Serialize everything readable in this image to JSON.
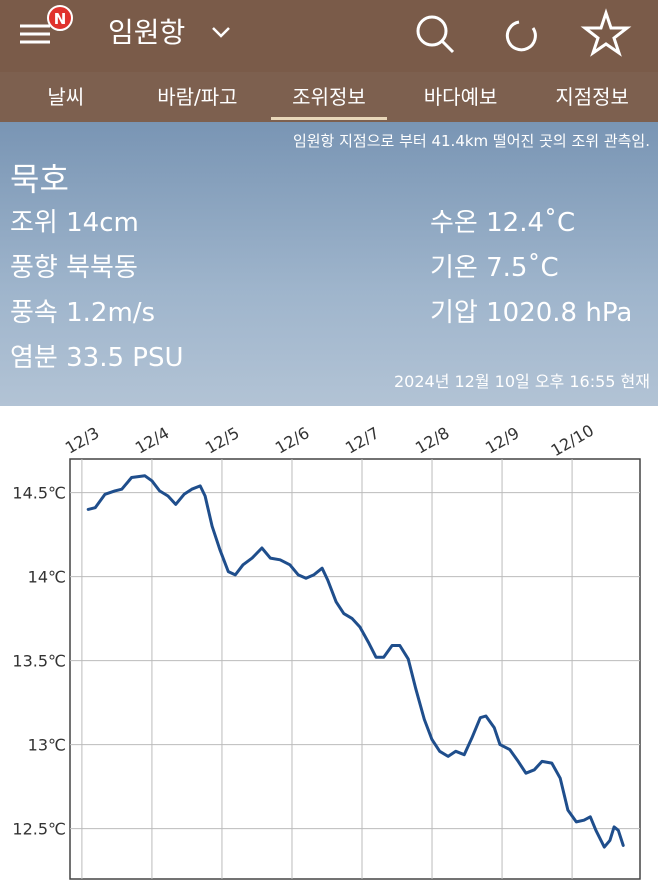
{
  "header": {
    "badge": "N",
    "title": "임원항"
  },
  "tabs": [
    "날씨",
    "바람/파고",
    "조위정보",
    "바다예보",
    "지점정보"
  ],
  "info": {
    "note": "임원항 지점으로 부터 41.4km 떨어진 곳의 조위 관측임.",
    "station": "묵호",
    "left": [
      "조위 14cm",
      "풍향 북북동",
      "풍속 1.2m/s",
      "염분 33.5 PSU"
    ],
    "right": [
      "수온 12.4˚C",
      "기온 7.5˚C",
      "기압 1020.8 hPa"
    ],
    "timestamp": "2024년 12월 10일 오후 16:55 현재"
  },
  "chart_data": {
    "type": "line",
    "color": "#1f4e8c",
    "grid": true,
    "x": [
      0.09,
      0.19,
      0.33,
      0.47,
      0.57,
      0.71,
      0.9,
      1.0,
      1.11,
      1.23,
      1.34,
      1.46,
      1.57,
      1.69,
      1.76,
      1.86,
      1.97,
      2.09,
      2.19,
      2.3,
      2.43,
      2.57,
      2.69,
      2.83,
      2.97,
      3.09,
      3.2,
      3.31,
      3.43,
      3.51,
      3.63,
      3.74,
      3.86,
      3.97,
      4.09,
      4.2,
      4.31,
      4.43,
      4.54,
      4.66,
      4.77,
      4.89,
      5.0,
      5.11,
      5.23,
      5.34,
      5.46,
      5.57,
      5.69,
      5.77,
      5.89,
      5.97,
      6.11,
      6.23,
      6.34,
      6.46,
      6.57,
      6.71,
      6.83,
      6.94,
      7.06,
      7.17,
      7.26,
      7.34,
      7.46,
      7.54,
      7.6,
      7.66,
      7.73
    ],
    "values": [
      14.4,
      14.41,
      14.49,
      14.51,
      14.52,
      14.59,
      14.6,
      14.57,
      14.51,
      14.48,
      14.43,
      14.49,
      14.52,
      14.54,
      14.48,
      14.3,
      14.16,
      14.03,
      14.01,
      14.07,
      14.11,
      14.17,
      14.11,
      14.1,
      14.07,
      14.01,
      13.99,
      14.01,
      14.05,
      13.98,
      13.85,
      13.78,
      13.75,
      13.7,
      13.61,
      13.52,
      13.52,
      13.59,
      13.59,
      13.51,
      13.33,
      13.15,
      13.03,
      12.96,
      12.93,
      12.96,
      12.94,
      13.04,
      13.16,
      13.17,
      13.1,
      13.0,
      12.97,
      12.9,
      12.83,
      12.85,
      12.9,
      12.89,
      12.8,
      12.61,
      12.54,
      12.55,
      12.57,
      12.49,
      12.39,
      12.43,
      12.51,
      12.49,
      12.4
    ],
    "xlim": [
      -0.17,
      7.97
    ],
    "xticks": [
      {
        "value": 0,
        "label": "12/3"
      },
      {
        "value": 1,
        "label": "12/4"
      },
      {
        "value": 2,
        "label": "12/5"
      },
      {
        "value": 3,
        "label": "12/6"
      },
      {
        "value": 4,
        "label": "12/7"
      },
      {
        "value": 5,
        "label": "12/8"
      },
      {
        "value": 6,
        "label": "12/9"
      },
      {
        "value": 7,
        "label": "12/10"
      }
    ],
    "ylim": [
      12.2,
      14.7
    ],
    "yticks": [
      {
        "value": 12.5,
        "label": "12.5℃"
      },
      {
        "value": 13,
        "label": "13℃"
      },
      {
        "value": 13.5,
        "label": "13.5℃"
      },
      {
        "value": 14,
        "label": "14℃"
      },
      {
        "value": 14.5,
        "label": "14.5℃"
      }
    ]
  }
}
